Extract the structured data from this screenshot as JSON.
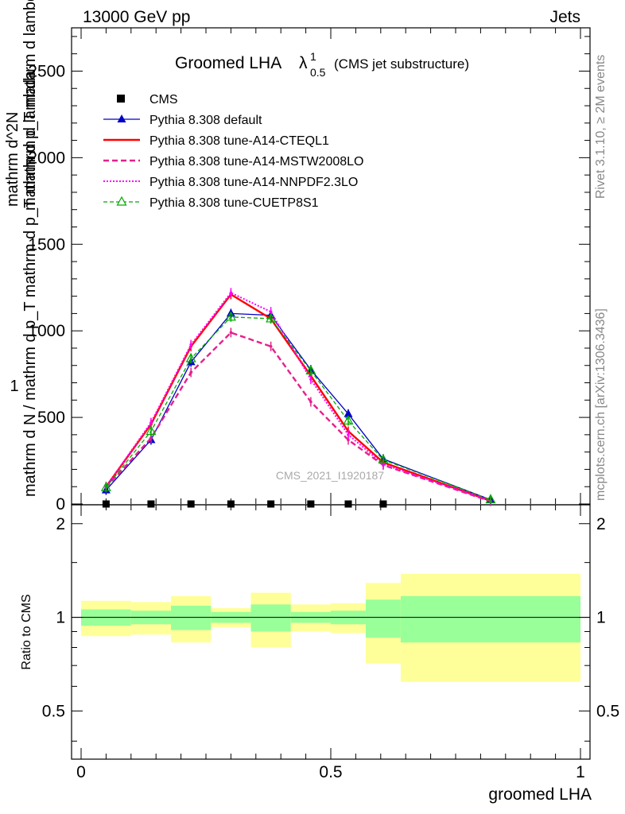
{
  "header": {
    "left": "13000 GeV pp",
    "right": "Jets"
  },
  "side_labels": {
    "rivet": "Rivet 3.1.10, ≥ 2M events",
    "mcplots": "mcplots.cern.ch [arXiv:1306.3436]"
  },
  "title": {
    "main": "Groomed LHA",
    "lambda": "λ",
    "sub": "0.5",
    "sup": "1",
    "note": "(CMS jet substructure)"
  },
  "watermark": "CMS_2021_I1920187",
  "ylabel_upper": {
    "numerator": "1",
    "denominator": "mathrm d N / mathrm d p_T mathrm d p_T mathrm d lambda",
    "frac2_num": "mathrm d^2N",
    "frac2_den": "mathrm d p_T mathrm d lambda"
  },
  "colors": {
    "cms": "#000000",
    "default": "#0000c8",
    "cteql1": "#ff0000",
    "mstw": "#e6208c",
    "nnpdf": "#ff00ff",
    "cuetp": "#00aa00",
    "band_inner": "#99ff99",
    "band_outer": "#ffff99"
  },
  "chart_data": [
    {
      "type": "line",
      "panel": "main",
      "title": "Groomed LHA λ^1_0.5 (CMS jet substructure)",
      "xlabel": "groomed LHA",
      "ylabel": "1/(mathrm d N / mathrm d p_T) mathrm d^2N/(mathrm d p_T mathrm d lambda)",
      "xlim": [
        0,
        1
      ],
      "ylim": [
        0,
        2750
      ],
      "y_ticks": [
        "0",
        "500",
        "1000",
        "1500",
        "2000",
        "2500"
      ],
      "legend_position": "top-left",
      "series": [
        {
          "name": "CMS",
          "style": "markers",
          "x": [
            0.05,
            0.14,
            0.22,
            0.3,
            0.38,
            0.46,
            0.535,
            0.605
          ],
          "y": [
            0,
            0,
            0,
            0,
            0,
            0,
            0,
            0
          ]
        },
        {
          "name": "Pythia 8.308 default",
          "style": "solid-triangles",
          "x": [
            0.05,
            0.14,
            0.22,
            0.3,
            0.38,
            0.46,
            0.535,
            0.605,
            0.82
          ],
          "y": [
            80,
            370,
            820,
            1100,
            1090,
            775,
            520,
            260,
            25
          ]
        },
        {
          "name": "Pythia 8.308 tune-A14-CTEQL1",
          "style": "solid",
          "x": [
            0.05,
            0.14,
            0.22,
            0.3,
            0.38,
            0.46,
            0.535,
            0.605,
            0.82
          ],
          "y": [
            100,
            460,
            910,
            1210,
            1070,
            740,
            420,
            240,
            18
          ]
        },
        {
          "name": "Pythia 8.308 tune-A14-MSTW2008LO",
          "style": "dashed",
          "x": [
            0.05,
            0.14,
            0.22,
            0.3,
            0.38,
            0.46,
            0.535,
            0.605,
            0.82
          ],
          "y": [
            95,
            380,
            760,
            990,
            910,
            590,
            370,
            225,
            15
          ]
        },
        {
          "name": "Pythia 8.308 tune-A14-NNPDF2.3LO",
          "style": "dotted",
          "x": [
            0.05,
            0.14,
            0.22,
            0.3,
            0.38,
            0.46,
            0.535,
            0.605,
            0.82
          ],
          "y": [
            100,
            470,
            920,
            1220,
            1110,
            720,
            400,
            230,
            18
          ]
        },
        {
          "name": "Pythia 8.308 tune-CUETP8S1",
          "style": "dashed-open-triangles",
          "x": [
            0.05,
            0.14,
            0.22,
            0.3,
            0.38,
            0.46,
            0.535,
            0.605,
            0.82
          ],
          "y": [
            95,
            420,
            840,
            1080,
            1070,
            770,
            480,
            255,
            25
          ]
        }
      ]
    },
    {
      "type": "area",
      "panel": "ratio",
      "xlabel": "groomed LHA",
      "ylabel": "Ratio to CMS",
      "xlim": [
        0,
        1
      ],
      "ylim": [
        0.35,
        2.3
      ],
      "y_ticks": [
        "0.5",
        "1",
        "2"
      ],
      "x_ticks": [
        "0",
        "0.5",
        "1"
      ],
      "reference_line": 1,
      "bins": [
        {
          "x_low": 0.0,
          "x_high": 0.1,
          "inner": [
            0.94,
            1.06
          ],
          "outer": [
            0.87,
            1.13
          ]
        },
        {
          "x_low": 0.1,
          "x_high": 0.18,
          "inner": [
            0.95,
            1.05
          ],
          "outer": [
            0.88,
            1.12
          ]
        },
        {
          "x_low": 0.18,
          "x_high": 0.26,
          "inner": [
            0.91,
            1.09
          ],
          "outer": [
            0.83,
            1.17
          ]
        },
        {
          "x_low": 0.26,
          "x_high": 0.34,
          "inner": [
            0.96,
            1.04
          ],
          "outer": [
            0.93,
            1.07
          ]
        },
        {
          "x_low": 0.34,
          "x_high": 0.42,
          "inner": [
            0.9,
            1.1
          ],
          "outer": [
            0.8,
            1.2
          ]
        },
        {
          "x_low": 0.42,
          "x_high": 0.5,
          "inner": [
            0.96,
            1.04
          ],
          "outer": [
            0.9,
            1.1
          ]
        },
        {
          "x_low": 0.5,
          "x_high": 0.57,
          "inner": [
            0.95,
            1.05
          ],
          "outer": [
            0.89,
            1.11
          ]
        },
        {
          "x_low": 0.57,
          "x_high": 0.64,
          "inner": [
            0.86,
            1.14
          ],
          "outer": [
            0.71,
            1.29
          ]
        },
        {
          "x_low": 0.64,
          "x_high": 1.0,
          "inner": [
            0.83,
            1.17
          ],
          "outer": [
            0.62,
            1.38
          ]
        }
      ]
    }
  ]
}
